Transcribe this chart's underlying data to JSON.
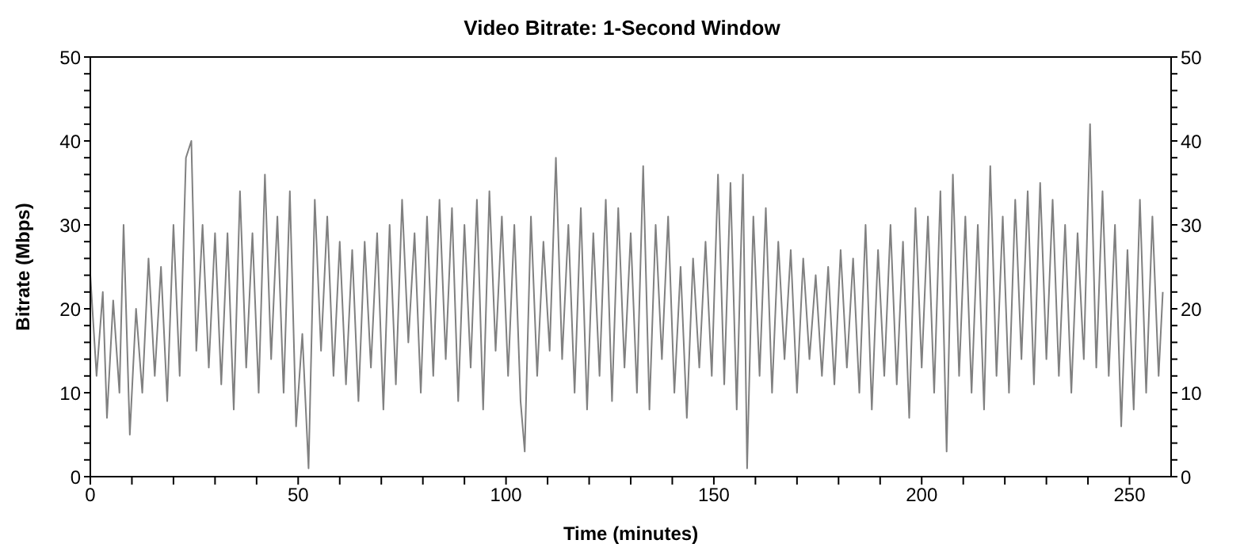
{
  "chart_data": {
    "type": "line",
    "title": "Video Bitrate: 1-Second Window",
    "xlabel": "Time (minutes)",
    "ylabel": "Bitrate (Mbps)",
    "xlim": [
      0,
      260
    ],
    "xticks": [
      0,
      {
        "value": 10,
        "label": null
      },
      {
        "value": 20,
        "label": null
      },
      {
        "value": 30,
        "label": null
      },
      {
        "value": 40,
        "label": null
      },
      50,
      {
        "value": 60,
        "label": null
      },
      {
        "value": 70,
        "label": null
      },
      {
        "value": 80,
        "label": null
      },
      {
        "value": 90,
        "label": null
      },
      100,
      {
        "value": 110,
        "label": null
      },
      {
        "value": 120,
        "label": null
      },
      {
        "value": 130,
        "label": null
      },
      {
        "value": 140,
        "label": null
      },
      150,
      {
        "value": 160,
        "label": null
      },
      {
        "value": 170,
        "label": null
      },
      {
        "value": 180,
        "label": null
      },
      {
        "value": 190,
        "label": null
      },
      200,
      {
        "value": 210,
        "label": null
      },
      {
        "value": 220,
        "label": null
      },
      {
        "value": 230,
        "label": null
      },
      {
        "value": 240,
        "label": null
      },
      250
    ],
    "ylim": [
      0,
      50
    ],
    "yticks": [
      0,
      {
        "value": 2,
        "label": null
      },
      {
        "value": 4,
        "label": null
      },
      {
        "value": 6,
        "label": null
      },
      {
        "value": 8,
        "label": null
      },
      10,
      {
        "value": 12,
        "label": null
      },
      {
        "value": 14,
        "label": null
      },
      {
        "value": 16,
        "label": null
      },
      {
        "value": 18,
        "label": null
      },
      20,
      {
        "value": 22,
        "label": null
      },
      {
        "value": 24,
        "label": null
      },
      {
        "value": 26,
        "label": null
      },
      {
        "value": 28,
        "label": null
      },
      30,
      {
        "value": 32,
        "label": null
      },
      {
        "value": 34,
        "label": null
      },
      {
        "value": 36,
        "label": null
      },
      {
        "value": 38,
        "label": null
      },
      40,
      {
        "value": 42,
        "label": null
      },
      {
        "value": 44,
        "label": null
      },
      {
        "value": 46,
        "label": null
      },
      {
        "value": 48,
        "label": null
      },
      50
    ],
    "y2lim": [
      0,
      50
    ],
    "y2ticks": [
      0,
      {
        "value": 2,
        "label": null
      },
      {
        "value": 4,
        "label": null
      },
      {
        "value": 6,
        "label": null
      },
      {
        "value": 8,
        "label": null
      },
      10,
      {
        "value": 12,
        "label": null
      },
      {
        "value": 14,
        "label": null
      },
      {
        "value": 16,
        "label": null
      },
      {
        "value": 18,
        "label": null
      },
      20,
      {
        "value": 22,
        "label": null
      },
      {
        "value": 24,
        "label": null
      },
      {
        "value": 26,
        "label": null
      },
      {
        "value": 28,
        "label": null
      },
      30,
      {
        "value": 32,
        "label": null
      },
      {
        "value": 34,
        "label": null
      },
      {
        "value": 36,
        "label": null
      },
      {
        "value": 38,
        "label": null
      },
      40,
      {
        "value": 42,
        "label": null
      },
      {
        "value": 44,
        "label": null
      },
      {
        "value": 46,
        "label": null
      },
      {
        "value": 48,
        "label": null
      },
      50
    ],
    "marker": "none",
    "line_style": "solid",
    "series": [
      {
        "color": "#808080",
        "x": [
          0,
          1.5,
          3,
          4,
          5.5,
          7,
          8,
          9.5,
          11,
          12.5,
          14,
          15.5,
          17,
          18.5,
          20,
          21.5,
          23,
          24.3,
          25.5,
          27,
          28.5,
          30,
          31.5,
          33,
          34.5,
          36,
          37.5,
          39,
          40.5,
          42,
          43.5,
          45,
          46.5,
          48,
          49.5,
          51,
          52.5,
          54,
          55.5,
          57,
          58.5,
          60,
          61.5,
          63,
          64.5,
          66,
          67.5,
          69,
          70.5,
          72,
          73.5,
          75,
          76.5,
          78,
          79.5,
          81,
          82.5,
          84,
          85.5,
          87,
          88.5,
          90,
          91.5,
          93,
          94.5,
          96,
          97.5,
          99,
          100.5,
          102,
          103.5,
          104.5,
          106,
          107.5,
          109,
          110.5,
          112,
          113.5,
          115,
          116.5,
          118,
          119.5,
          121,
          122.5,
          124,
          125.5,
          127,
          128.5,
          130,
          131.5,
          133,
          134.5,
          136,
          137.5,
          139,
          140.5,
          142,
          143.5,
          145,
          146.5,
          148,
          149.5,
          151,
          152.5,
          154,
          155.5,
          157,
          158,
          159.5,
          161,
          162.5,
          164,
          165.5,
          167,
          168.5,
          170,
          171.5,
          173,
          174.5,
          176,
          177.5,
          179,
          180.5,
          182,
          183.5,
          185,
          186.5,
          188,
          189.5,
          191,
          192.5,
          194,
          195.5,
          197,
          198.5,
          200,
          201.5,
          203,
          204.5,
          206,
          207.5,
          209,
          210.5,
          212,
          213.5,
          215,
          216.5,
          218,
          219.5,
          221,
          222.5,
          224,
          225.5,
          227,
          228.5,
          230,
          231.5,
          233,
          234.5,
          236,
          237.5,
          239,
          240.5,
          242,
          243.5,
          245,
          246.5,
          248,
          249.5,
          251,
          252.5,
          254,
          255.5,
          257,
          258
        ],
        "values": [
          24,
          12,
          22,
          7,
          21,
          10,
          30,
          5,
          20,
          10,
          26,
          12,
          25,
          9,
          30,
          12,
          38,
          40,
          15,
          30,
          13,
          29,
          11,
          29,
          8,
          34,
          13,
          29,
          10,
          36,
          14,
          31,
          10,
          34,
          6,
          17,
          1,
          33,
          15,
          31,
          12,
          28,
          11,
          27,
          9,
          28,
          13,
          29,
          8,
          30,
          11,
          33,
          16,
          29,
          10,
          31,
          12,
          33,
          14,
          32,
          9,
          30,
          13,
          33,
          8,
          34,
          15,
          31,
          12,
          30,
          9,
          3,
          31,
          12,
          28,
          15,
          38,
          14,
          30,
          10,
          32,
          8,
          29,
          12,
          33,
          9,
          32,
          13,
          29,
          10,
          37,
          8,
          30,
          14,
          31,
          10,
          25,
          7,
          26,
          13,
          28,
          12,
          36,
          11,
          35,
          8,
          36,
          1,
          31,
          12,
          32,
          10,
          28,
          14,
          27,
          10,
          26,
          14,
          24,
          12,
          25,
          11,
          27,
          13,
          26,
          10,
          30,
          8,
          27,
          12,
          30,
          11,
          28,
          7,
          32,
          13,
          31,
          10,
          34,
          3,
          36,
          12,
          31,
          10,
          30,
          8,
          37,
          12,
          31,
          10,
          33,
          14,
          34,
          11,
          35,
          14,
          33,
          12,
          30,
          10,
          29,
          14,
          42,
          13,
          34,
          12,
          30,
          6,
          27,
          8,
          33,
          10,
          31,
          12,
          22
        ]
      }
    ]
  }
}
